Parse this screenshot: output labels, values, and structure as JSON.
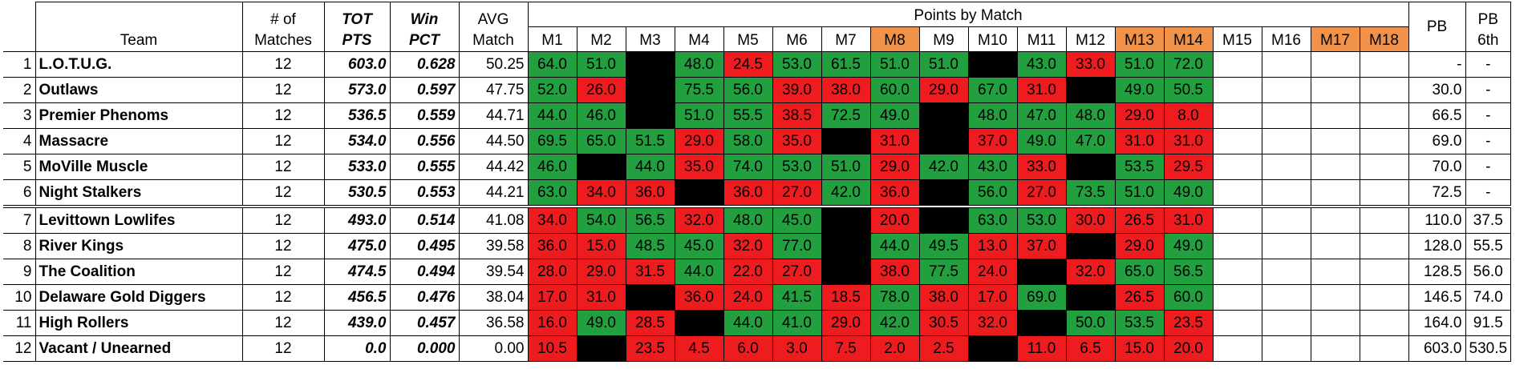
{
  "palette": {
    "green": "#22a040",
    "red": "#ee1c1f",
    "black": "#000000",
    "orange": "#f0924a"
  },
  "header": {
    "team": "Team",
    "matches": [
      "# of",
      "Matches"
    ],
    "tot": [
      "TOT",
      "PTS"
    ],
    "win": [
      "Win",
      "PCT"
    ],
    "avg": [
      "AVG",
      "Match"
    ],
    "points_by_match": "Points by Match",
    "match_labels": [
      "M1",
      "M2",
      "M3",
      "M4",
      "M5",
      "M6",
      "M7",
      "M8",
      "M9",
      "M10",
      "M11",
      "M12",
      "M13",
      "M14",
      "M15",
      "M16",
      "M17",
      "M18"
    ],
    "match_fills": [
      null,
      null,
      null,
      null,
      null,
      null,
      null,
      "orange",
      null,
      null,
      null,
      null,
      "orange",
      "orange",
      null,
      null,
      "orange",
      "orange"
    ],
    "pb": "PB",
    "pb6": [
      "PB",
      "6th"
    ]
  },
  "groups": [
    [
      {
        "rank": "1",
        "team": "L.O.T.U.G.",
        "matches": "12",
        "tot": "603.0",
        "win": "0.628",
        "avg": "50.25",
        "points": [
          "64.0",
          "51.0",
          null,
          "48.0",
          "24.5",
          "53.0",
          "61.5",
          "51.0",
          "51.0",
          null,
          "43.0",
          "33.0",
          "51.0",
          "72.0",
          null,
          null,
          null,
          null
        ],
        "fills": [
          "green",
          "green",
          "black",
          "green",
          "red",
          "green",
          "green",
          "green",
          "green",
          "black",
          "green",
          "red",
          "green",
          "green",
          null,
          null,
          null,
          null
        ],
        "pb": "-",
        "pb6": "-"
      },
      {
        "rank": "2",
        "team": "Outlaws",
        "matches": "12",
        "tot": "573.0",
        "win": "0.597",
        "avg": "47.75",
        "points": [
          "52.0",
          "26.0",
          null,
          "75.5",
          "56.0",
          "39.0",
          "38.0",
          "60.0",
          "29.0",
          "67.0",
          "31.0",
          null,
          "49.0",
          "50.5",
          null,
          null,
          null,
          null
        ],
        "fills": [
          "green",
          "red",
          "black",
          "green",
          "green",
          "red",
          "red",
          "green",
          "red",
          "green",
          "red",
          "black",
          "green",
          "green",
          null,
          null,
          null,
          null
        ],
        "pb": "30.0",
        "pb6": "-"
      },
      {
        "rank": "3",
        "team": "Premier Phenoms",
        "matches": "12",
        "tot": "536.5",
        "win": "0.559",
        "avg": "44.71",
        "points": [
          "44.0",
          "46.0",
          null,
          "51.0",
          "55.5",
          "38.5",
          "72.5",
          "49.0",
          null,
          "48.0",
          "47.0",
          "48.0",
          "29.0",
          "8.0",
          null,
          null,
          null,
          null
        ],
        "fills": [
          "green",
          "green",
          "black",
          "green",
          "green",
          "red",
          "green",
          "green",
          "black",
          "green",
          "green",
          "green",
          "red",
          "red",
          null,
          null,
          null,
          null
        ],
        "pb": "66.5",
        "pb6": "-"
      },
      {
        "rank": "4",
        "team": "Massacre",
        "matches": "12",
        "tot": "534.0",
        "win": "0.556",
        "avg": "44.50",
        "points": [
          "69.5",
          "65.0",
          "51.5",
          "29.0",
          "58.0",
          "35.0",
          null,
          "31.0",
          null,
          "37.0",
          "49.0",
          "47.0",
          "31.0",
          "31.0",
          null,
          null,
          null,
          null
        ],
        "fills": [
          "green",
          "green",
          "green",
          "red",
          "green",
          "red",
          "black",
          "red",
          "black",
          "red",
          "green",
          "green",
          "red",
          "red",
          null,
          null,
          null,
          null
        ],
        "pb": "69.0",
        "pb6": "-"
      },
      {
        "rank": "5",
        "team": "MoVille Muscle",
        "matches": "12",
        "tot": "533.0",
        "win": "0.555",
        "avg": "44.42",
        "points": [
          "46.0",
          null,
          "44.0",
          "35.0",
          "74.0",
          "53.0",
          "51.0",
          "29.0",
          "42.0",
          "43.0",
          "33.0",
          null,
          "53.5",
          "29.5",
          null,
          null,
          null,
          null
        ],
        "fills": [
          "green",
          "black",
          "green",
          "red",
          "green",
          "green",
          "green",
          "red",
          "green",
          "green",
          "red",
          "black",
          "green",
          "red",
          null,
          null,
          null,
          null
        ],
        "pb": "70.0",
        "pb6": "-"
      },
      {
        "rank": "6",
        "team": "Night Stalkers",
        "matches": "12",
        "tot": "530.5",
        "win": "0.553",
        "avg": "44.21",
        "points": [
          "63.0",
          "34.0",
          "36.0",
          null,
          "36.0",
          "27.0",
          "42.0",
          "36.0",
          null,
          "56.0",
          "27.0",
          "73.5",
          "51.0",
          "49.0",
          null,
          null,
          null,
          null
        ],
        "fills": [
          "green",
          "red",
          "red",
          "black",
          "red",
          "red",
          "green",
          "red",
          "black",
          "green",
          "red",
          "green",
          "green",
          "green",
          null,
          null,
          null,
          null
        ],
        "pb": "72.5",
        "pb6": "-"
      }
    ],
    [
      {
        "rank": "7",
        "team": "Levittown Lowlifes",
        "matches": "12",
        "tot": "493.0",
        "win": "0.514",
        "avg": "41.08",
        "points": [
          "34.0",
          "54.0",
          "56.5",
          "32.0",
          "48.0",
          "45.0",
          null,
          "20.0",
          null,
          "63.0",
          "53.0",
          "30.0",
          "26.5",
          "31.0",
          null,
          null,
          null,
          null
        ],
        "fills": [
          "red",
          "green",
          "green",
          "red",
          "green",
          "green",
          "black",
          "red",
          "black",
          "green",
          "green",
          "red",
          "red",
          "red",
          null,
          null,
          null,
          null
        ],
        "pb": "110.0",
        "pb6": "37.5"
      },
      {
        "rank": "8",
        "team": "River Kings",
        "matches": "12",
        "tot": "475.0",
        "win": "0.495",
        "avg": "39.58",
        "points": [
          "36.0",
          "15.0",
          "48.5",
          "45.0",
          "32.0",
          "77.0",
          null,
          "44.0",
          "49.5",
          "13.0",
          "37.0",
          null,
          "29.0",
          "49.0",
          null,
          null,
          null,
          null
        ],
        "fills": [
          "red",
          "red",
          "green",
          "green",
          "red",
          "green",
          "black",
          "green",
          "green",
          "red",
          "red",
          "black",
          "red",
          "green",
          null,
          null,
          null,
          null
        ],
        "pb": "128.0",
        "pb6": "55.5"
      },
      {
        "rank": "9",
        "team": "The Coalition",
        "matches": "12",
        "tot": "474.5",
        "win": "0.494",
        "avg": "39.54",
        "points": [
          "28.0",
          "29.0",
          "31.5",
          "44.0",
          "22.0",
          "27.0",
          null,
          "38.0",
          "77.5",
          "24.0",
          null,
          "32.0",
          "65.0",
          "56.5",
          null,
          null,
          null,
          null
        ],
        "fills": [
          "red",
          "red",
          "red",
          "green",
          "red",
          "red",
          "black",
          "red",
          "green",
          "red",
          "black",
          "red",
          "green",
          "green",
          null,
          null,
          null,
          null
        ],
        "pb": "128.5",
        "pb6": "56.0"
      },
      {
        "rank": "10",
        "team": "Delaware Gold Diggers",
        "matches": "12",
        "tot": "456.5",
        "win": "0.476",
        "avg": "38.04",
        "points": [
          "17.0",
          "31.0",
          null,
          "36.0",
          "24.0",
          "41.5",
          "18.5",
          "78.0",
          "38.0",
          "17.0",
          "69.0",
          null,
          "26.5",
          "60.0",
          null,
          null,
          null,
          null
        ],
        "fills": [
          "red",
          "red",
          "black",
          "red",
          "red",
          "green",
          "red",
          "green",
          "red",
          "red",
          "green",
          "black",
          "red",
          "green",
          null,
          null,
          null,
          null
        ],
        "pb": "146.5",
        "pb6": "74.0"
      },
      {
        "rank": "11",
        "team": "High Rollers",
        "matches": "12",
        "tot": "439.0",
        "win": "0.457",
        "avg": "36.58",
        "points": [
          "16.0",
          "49.0",
          "28.5",
          null,
          "44.0",
          "41.0",
          "29.0",
          "42.0",
          "30.5",
          "32.0",
          null,
          "50.0",
          "53.5",
          "23.5",
          null,
          null,
          null,
          null
        ],
        "fills": [
          "red",
          "green",
          "red",
          "black",
          "green",
          "green",
          "red",
          "green",
          "red",
          "red",
          "black",
          "green",
          "green",
          "red",
          null,
          null,
          null,
          null
        ],
        "pb": "164.0",
        "pb6": "91.5"
      },
      {
        "rank": "12",
        "team": "Vacant / Unearned",
        "matches": "12",
        "tot": "0.0",
        "win": "0.000",
        "avg": "0.00",
        "points": [
          "10.5",
          null,
          "23.5",
          "4.5",
          "6.0",
          "3.0",
          "7.5",
          "2.0",
          "2.5",
          null,
          "11.0",
          "6.5",
          "15.0",
          "20.0",
          null,
          null,
          null,
          null
        ],
        "fills": [
          "red",
          "black",
          "red",
          "red",
          "red",
          "red",
          "red",
          "red",
          "red",
          "black",
          "red",
          "red",
          "red",
          "red",
          null,
          null,
          null,
          null
        ],
        "pb": "603.0",
        "pb6": "530.5"
      }
    ]
  ]
}
